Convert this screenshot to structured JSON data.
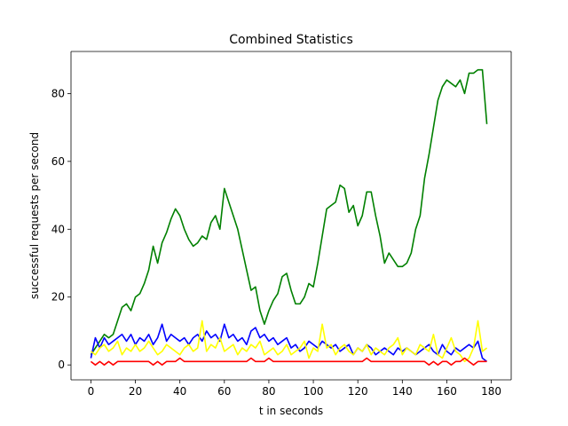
{
  "chart_data": {
    "type": "line",
    "title": "Combined Statistics",
    "xlabel": "t in seconds",
    "ylabel": "successful requests per second",
    "xlim": [
      -8.95,
      188.95
    ],
    "ylim": [
      -4.4,
      92.4
    ],
    "xticks": [
      0,
      20,
      40,
      60,
      80,
      100,
      120,
      140,
      160,
      180
    ],
    "yticks": [
      0,
      20,
      40,
      60,
      80
    ],
    "grid": false,
    "legend": "none",
    "series": [
      {
        "color": "#008000",
        "x": [
          0,
          2,
          4,
          6,
          8,
          10,
          12,
          14,
          16,
          18,
          20,
          22,
          24,
          26,
          28,
          30,
          32,
          34,
          36,
          38,
          40,
          42,
          44,
          46,
          48,
          50,
          52,
          54,
          56,
          58,
          60,
          62,
          64,
          66,
          68,
          70,
          72,
          74,
          76,
          78,
          80,
          82,
          84,
          86,
          88,
          90,
          92,
          94,
          96,
          98,
          100,
          102,
          104,
          106,
          108,
          110,
          112,
          114,
          116,
          118,
          120,
          122,
          124,
          126,
          128,
          130,
          132,
          134,
          136,
          138,
          140,
          142,
          144,
          146,
          148,
          150,
          152,
          154,
          156,
          158,
          160,
          162,
          164,
          166,
          168,
          170,
          172,
          174,
          176,
          178
        ],
        "y": [
          3,
          5,
          7,
          9,
          8,
          9,
          13,
          17,
          18,
          16,
          20,
          21,
          24,
          28,
          35,
          30,
          36,
          39,
          43,
          46,
          44,
          40,
          37,
          35,
          36,
          38,
          37,
          42,
          44,
          40,
          52,
          48,
          44,
          40,
          34,
          28,
          22,
          23,
          16,
          12,
          16,
          19,
          21,
          26,
          27,
          22,
          18,
          18,
          20,
          24,
          23,
          30,
          38,
          46,
          47,
          48,
          53,
          52,
          45,
          47,
          41,
          44,
          51,
          51,
          44,
          38,
          30,
          33,
          31,
          29,
          29,
          30,
          33,
          40,
          44,
          55,
          62,
          70,
          78,
          82,
          84,
          83,
          82,
          84,
          80,
          86,
          86,
          87,
          87,
          71
        ]
      },
      {
        "color": "#0000ff",
        "x": [
          0,
          2,
          4,
          6,
          8,
          10,
          12,
          14,
          16,
          18,
          20,
          22,
          24,
          26,
          28,
          30,
          32,
          34,
          36,
          38,
          40,
          42,
          44,
          46,
          48,
          50,
          52,
          54,
          56,
          58,
          60,
          62,
          64,
          66,
          68,
          70,
          72,
          74,
          76,
          78,
          80,
          82,
          84,
          86,
          88,
          90,
          92,
          94,
          96,
          98,
          100,
          102,
          104,
          106,
          108,
          110,
          112,
          114,
          116,
          118,
          120,
          122,
          124,
          126,
          128,
          130,
          132,
          134,
          136,
          138,
          140,
          142,
          144,
          146,
          148,
          150,
          152,
          154,
          156,
          158,
          160,
          162,
          164,
          166,
          168,
          170,
          172,
          174,
          176,
          178
        ],
        "y": [
          2,
          8,
          5,
          8,
          6,
          7,
          8,
          9,
          7,
          9,
          6,
          8,
          7,
          9,
          6,
          8,
          12,
          7,
          9,
          8,
          7,
          8,
          6,
          8,
          9,
          7,
          10,
          8,
          9,
          7,
          12,
          8,
          9,
          7,
          8,
          6,
          10,
          11,
          8,
          9,
          7,
          8,
          6,
          7,
          8,
          5,
          6,
          4,
          5,
          7,
          6,
          5,
          7,
          6,
          5,
          6,
          4,
          5,
          6,
          3,
          5,
          4,
          6,
          5,
          3,
          4,
          5,
          4,
          3,
          5,
          4,
          5,
          4,
          3,
          4,
          5,
          6,
          4,
          3,
          6,
          4,
          3,
          5,
          4,
          5,
          6,
          5,
          7,
          2,
          1
        ]
      },
      {
        "color": "#ffff00",
        "x": [
          0,
          2,
          4,
          6,
          8,
          10,
          12,
          14,
          16,
          18,
          20,
          22,
          24,
          26,
          28,
          30,
          32,
          34,
          36,
          38,
          40,
          42,
          44,
          46,
          48,
          50,
          52,
          54,
          56,
          58,
          60,
          62,
          64,
          66,
          68,
          70,
          72,
          74,
          76,
          78,
          80,
          82,
          84,
          86,
          88,
          90,
          92,
          94,
          96,
          98,
          100,
          102,
          104,
          106,
          108,
          110,
          112,
          114,
          116,
          118,
          120,
          122,
          124,
          126,
          128,
          130,
          132,
          134,
          136,
          138,
          140,
          142,
          144,
          146,
          148,
          150,
          152,
          154,
          156,
          158,
          160,
          162,
          164,
          166,
          168,
          170,
          172,
          174,
          176,
          178
        ],
        "y": [
          4,
          3,
          5,
          6,
          4,
          5,
          7,
          3,
          5,
          4,
          6,
          4,
          5,
          7,
          5,
          3,
          4,
          6,
          5,
          4,
          3,
          5,
          6,
          4,
          5,
          13,
          4,
          6,
          5,
          8,
          4,
          5,
          6,
          3,
          5,
          4,
          6,
          5,
          7,
          3,
          4,
          5,
          3,
          4,
          6,
          3,
          4,
          5,
          7,
          2,
          5,
          4,
          12,
          5,
          6,
          3,
          5,
          6,
          4,
          3,
          5,
          4,
          6,
          3,
          5,
          4,
          3,
          5,
          6,
          8,
          3,
          5,
          4,
          3,
          6,
          5,
          4,
          9,
          3,
          2,
          5,
          8,
          4,
          3,
          1,
          2,
          5,
          13,
          4,
          5
        ]
      },
      {
        "color": "#ff0000",
        "x": [
          0,
          2,
          4,
          6,
          8,
          10,
          12,
          14,
          16,
          18,
          20,
          22,
          24,
          26,
          28,
          30,
          32,
          34,
          36,
          38,
          40,
          42,
          44,
          46,
          48,
          50,
          52,
          54,
          56,
          58,
          60,
          62,
          64,
          66,
          68,
          70,
          72,
          74,
          76,
          78,
          80,
          82,
          84,
          86,
          88,
          90,
          92,
          94,
          96,
          98,
          100,
          102,
          104,
          106,
          108,
          110,
          112,
          114,
          116,
          118,
          120,
          122,
          124,
          126,
          128,
          130,
          132,
          134,
          136,
          138,
          140,
          142,
          144,
          146,
          148,
          150,
          152,
          154,
          156,
          158,
          160,
          162,
          164,
          166,
          168,
          170,
          172,
          174,
          176,
          178
        ],
        "y": [
          1,
          0,
          1,
          0,
          1,
          0,
          1,
          1,
          1,
          1,
          1,
          1,
          1,
          1,
          0,
          1,
          0,
          1,
          1,
          1,
          2,
          1,
          1,
          1,
          1,
          1,
          1,
          1,
          1,
          1,
          1,
          1,
          1,
          1,
          1,
          1,
          2,
          1,
          1,
          1,
          2,
          1,
          1,
          1,
          1,
          1,
          1,
          1,
          1,
          1,
          1,
          1,
          1,
          1,
          1,
          1,
          1,
          1,
          1,
          1,
          1,
          1,
          2,
          1,
          1,
          1,
          1,
          1,
          1,
          1,
          1,
          1,
          1,
          1,
          1,
          1,
          0,
          1,
          0,
          1,
          1,
          0,
          1,
          1,
          2,
          1,
          0,
          1,
          1,
          1
        ]
      }
    ]
  }
}
